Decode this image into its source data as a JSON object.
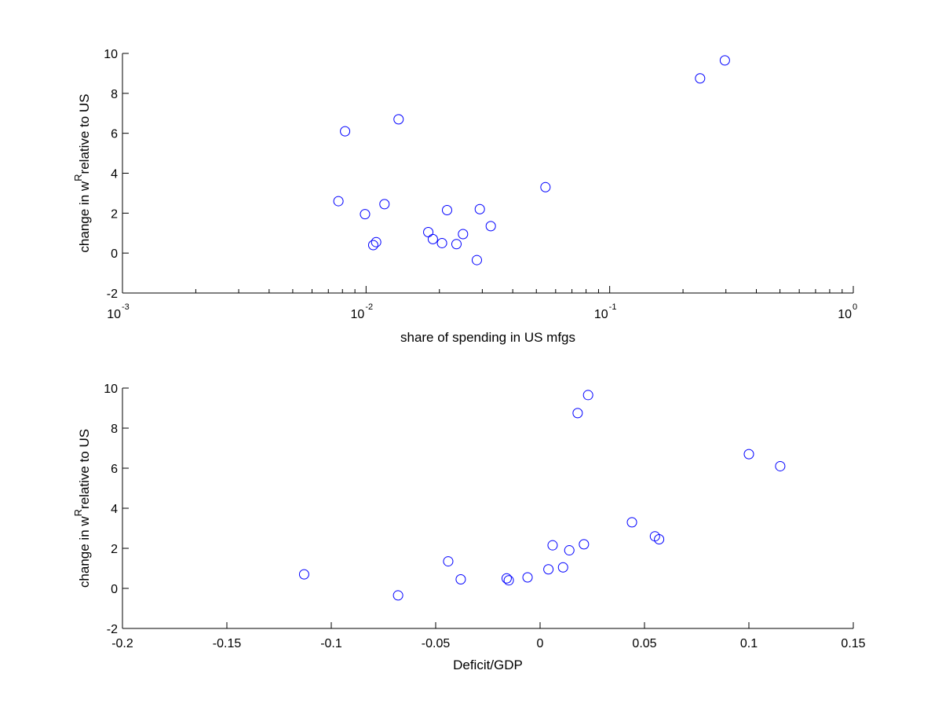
{
  "chart_data": [
    {
      "type": "scatter",
      "xlabel": "share of spending in US mfgs",
      "ylabel": {
        "prefix": "change in w",
        "superscript": "R",
        "suffix": "relative to US"
      },
      "x_scale": "log",
      "xlim": [
        0.001,
        1
      ],
      "ylim": [
        -2,
        10
      ],
      "x_ticks": [
        {
          "base": "10",
          "exp": "-3"
        },
        {
          "base": "10",
          "exp": "-2"
        },
        {
          "base": "10",
          "exp": "-1"
        },
        {
          "base": "10",
          "exp": "0"
        }
      ],
      "y_ticks": [
        "-2",
        "0",
        "2",
        "4",
        "6",
        "8",
        "10"
      ],
      "grid": false,
      "marker": "circle",
      "marker_color": "#0000ff",
      "series": [
        {
          "points": [
            [
              0.0077,
              2.6
            ],
            [
              0.0082,
              6.1
            ],
            [
              0.0099,
              1.95
            ],
            [
              0.0107,
              0.4
            ],
            [
              0.011,
              0.55
            ],
            [
              0.0119,
              2.45
            ],
            [
              0.0136,
              6.7
            ],
            [
              0.018,
              1.05
            ],
            [
              0.0188,
              0.7
            ],
            [
              0.0205,
              0.5
            ],
            [
              0.0215,
              2.15
            ],
            [
              0.0235,
              0.45
            ],
            [
              0.025,
              0.95
            ],
            [
              0.0285,
              -0.35
            ],
            [
              0.0293,
              2.2
            ],
            [
              0.0325,
              1.35
            ],
            [
              0.0545,
              3.3
            ],
            [
              0.235,
              8.75
            ],
            [
              0.297,
              9.65
            ]
          ]
        }
      ]
    },
    {
      "type": "scatter",
      "xlabel": "Deficit/GDP",
      "ylabel": {
        "prefix": "change in w",
        "superscript": "R",
        "suffix": "relative to US"
      },
      "x_scale": "linear",
      "xlim": [
        -0.2,
        0.15
      ],
      "ylim": [
        -2,
        10
      ],
      "x_ticks": [
        "-0.2",
        "-0.15",
        "-0.1",
        "-0.05",
        "0",
        "0.05",
        "0.1",
        "0.15"
      ],
      "y_ticks": [
        "-2",
        "0",
        "2",
        "4",
        "6",
        "8",
        "10"
      ],
      "grid": false,
      "marker": "circle",
      "marker_color": "#0000ff",
      "series": [
        {
          "points": [
            [
              -0.113,
              0.7
            ],
            [
              -0.068,
              -0.35
            ],
            [
              -0.044,
              1.35
            ],
            [
              -0.038,
              0.45
            ],
            [
              -0.016,
              0.5
            ],
            [
              -0.015,
              0.4
            ],
            [
              -0.006,
              0.55
            ],
            [
              0.004,
              0.95
            ],
            [
              0.006,
              2.15
            ],
            [
              0.011,
              1.05
            ],
            [
              0.014,
              1.9
            ],
            [
              0.018,
              8.75
            ],
            [
              0.021,
              2.2
            ],
            [
              0.023,
              9.65
            ],
            [
              0.044,
              3.3
            ],
            [
              0.055,
              2.6
            ],
            [
              0.057,
              2.45
            ],
            [
              0.1,
              6.7
            ],
            [
              0.115,
              6.1
            ]
          ]
        }
      ]
    }
  ]
}
